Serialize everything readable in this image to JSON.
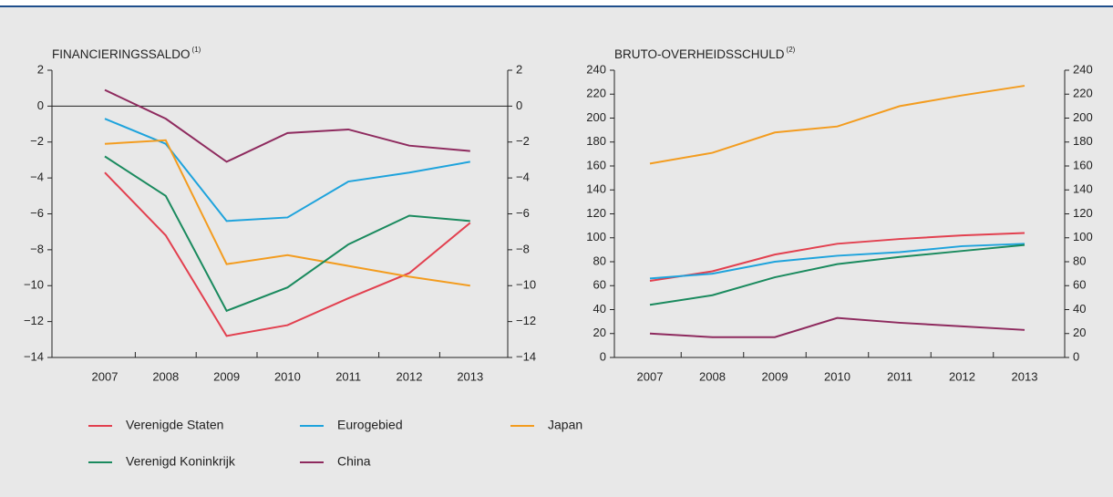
{
  "chart_data": [
    {
      "type": "line",
      "title": "FINANCIERINGSSALDO",
      "title_note": "(1)",
      "categories": [
        "2007",
        "2008",
        "2009",
        "2010",
        "2011",
        "2012",
        "2013"
      ],
      "ylim": [
        -14,
        2
      ],
      "yticks": [
        {
          "value": -14,
          "label": "−14"
        },
        {
          "value": -12,
          "label": "−12"
        },
        {
          "value": -10,
          "label": "−10"
        },
        {
          "value": -8,
          "label": "−8"
        },
        {
          "value": -6,
          "label": "−6"
        },
        {
          "value": -4,
          "label": "−4"
        },
        {
          "value": -2,
          "label": "−2"
        },
        0,
        2
      ],
      "y2lim": [
        -14,
        2
      ],
      "y2ticks": [
        {
          "value": -14,
          "label": "−14"
        },
        {
          "value": -12,
          "label": "−12"
        },
        {
          "value": -10,
          "label": "−10"
        },
        {
          "value": -8,
          "label": "−8"
        },
        {
          "value": -6,
          "label": "−6"
        },
        {
          "value": -4,
          "label": "−4"
        },
        {
          "value": -2,
          "label": "−2"
        },
        0,
        2
      ],
      "series": [
        {
          "name": "Verenigde Staten",
          "color": "#e2404f",
          "values": [
            -3.7,
            -7.2,
            -12.8,
            -12.2,
            -10.7,
            -9.3,
            -6.5
          ]
        },
        {
          "name": "Eurogebied",
          "color": "#1ea3dc",
          "values": [
            -0.7,
            -2.1,
            -6.4,
            -6.2,
            -4.2,
            -3.7,
            -3.1
          ]
        },
        {
          "name": "Japan",
          "color": "#f39c1f",
          "values": [
            -2.1,
            -1.9,
            -8.8,
            -8.3,
            -8.9,
            -9.5,
            -10.0
          ]
        },
        {
          "name": "Verenigd Koninkrijk",
          "color": "#1a8a5e",
          "values": [
            -2.8,
            -5.0,
            -11.4,
            -10.1,
            -7.7,
            -6.1,
            -6.4
          ]
        },
        {
          "name": "China",
          "color": "#8e2a5e",
          "values": [
            0.9,
            -0.7,
            -3.1,
            -1.5,
            -1.3,
            -2.2,
            -2.5
          ]
        }
      ]
    },
    {
      "type": "line",
      "title": "BRUTO-OVERHEIDSSCHULD",
      "title_note": "(2)",
      "categories": [
        "2007",
        "2008",
        "2009",
        "2010",
        "2011",
        "2012",
        "2013"
      ],
      "ylim": [
        0,
        240
      ],
      "yticks": [
        0,
        20,
        40,
        60,
        80,
        100,
        120,
        140,
        160,
        180,
        200,
        220,
        240
      ],
      "y2lim": [
        0,
        240
      ],
      "y2ticks": [
        0,
        20,
        40,
        60,
        80,
        100,
        120,
        140,
        160,
        180,
        200,
        220,
        240
      ],
      "series": [
        {
          "color": "#e2404f",
          "values": [
            64,
            72,
            86,
            95,
            99,
            102,
            104
          ]
        },
        {
          "color": "#1ea3dc",
          "values": [
            66,
            70,
            80,
            85,
            88,
            93,
            95
          ]
        },
        {
          "color": "#f39c1f",
          "values": [
            162,
            171,
            188,
            193,
            210,
            219,
            227
          ]
        },
        {
          "color": "#1a8a5e",
          "values": [
            44,
            52,
            67,
            78,
            84,
            89,
            94
          ]
        },
        {
          "color": "#8e2a5e",
          "values": [
            20,
            17,
            17,
            33,
            29,
            26,
            23
          ]
        }
      ]
    }
  ]
}
